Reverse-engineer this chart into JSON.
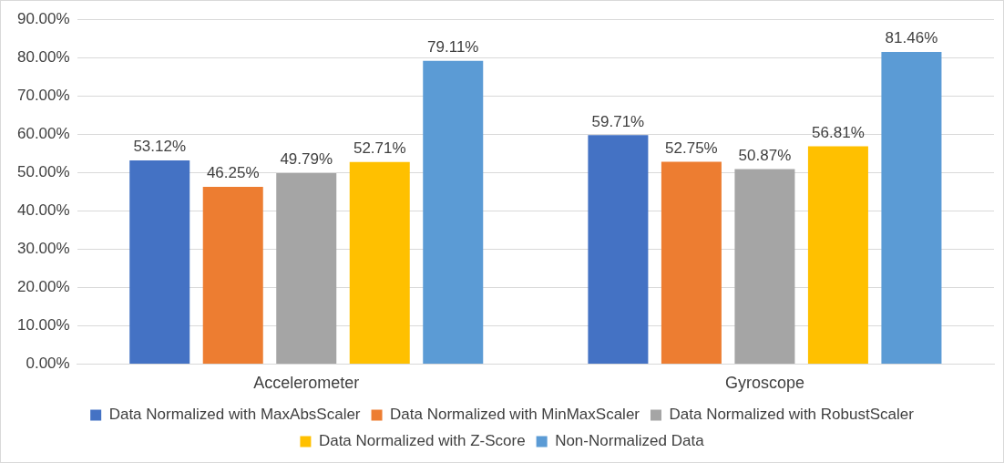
{
  "chart_data": {
    "type": "bar",
    "categories": [
      "Accelerometer",
      "Gyroscope"
    ],
    "series": [
      {
        "name": "Data Normalized with MaxAbsScaler",
        "color": "#4472c4",
        "values": [
          53.12,
          59.71
        ],
        "value_labels": [
          "53.12%",
          "59.71%"
        ]
      },
      {
        "name": "Data Normalized with MinMaxScaler",
        "color": "#ed7d31",
        "values": [
          46.25,
          52.75
        ],
        "value_labels": [
          "46.25%",
          "52.75%"
        ]
      },
      {
        "name": "Data Normalized with RobustScaler",
        "color": "#a5a5a5",
        "values": [
          49.79,
          50.87
        ],
        "value_labels": [
          "49.79%",
          "50.87%"
        ]
      },
      {
        "name": "Data Normalized with Z-Score",
        "color": "#ffc000",
        "values": [
          52.71,
          56.81
        ],
        "value_labels": [
          "52.71%",
          "56.81%"
        ]
      },
      {
        "name": "Non-Normalized Data",
        "color": "#5b9bd5",
        "values": [
          79.11,
          81.46
        ],
        "value_labels": [
          "79.11%",
          "81.46%"
        ]
      }
    ],
    "ylim": [
      0,
      90
    ],
    "yticks": [
      {
        "value": 0,
        "label": "0.00%"
      },
      {
        "value": 10,
        "label": "10.00%"
      },
      {
        "value": 20,
        "label": "20.00%"
      },
      {
        "value": 30,
        "label": "30.00%"
      },
      {
        "value": 40,
        "label": "40.00%"
      },
      {
        "value": 50,
        "label": "50.00%"
      },
      {
        "value": 60,
        "label": "60.00%"
      },
      {
        "value": 70,
        "label": "70.00%"
      },
      {
        "value": 80,
        "label": "80.00%"
      },
      {
        "value": 90,
        "label": "90.00%"
      }
    ],
    "grid": "y",
    "legend": "bottom"
  }
}
